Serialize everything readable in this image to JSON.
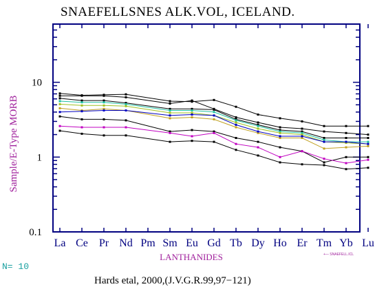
{
  "chart_data": {
    "type": "line",
    "title": "SNAEFELLSNES ALK.VOL, ICELAND.",
    "ylabel": "Sample/E-Type MORB",
    "xlabel": "LANTHANIDES",
    "yscale": "log",
    "ylim": [
      0.1,
      60
    ],
    "yticks": [
      {
        "value": 0.1,
        "label": "0.1"
      },
      {
        "value": 1,
        "label": "1"
      },
      {
        "value": 10,
        "label": "10"
      }
    ],
    "categories": [
      "La",
      "Ce",
      "Pr",
      "Nd",
      "Pm",
      "Sm",
      "Eu",
      "Gd",
      "Tb",
      "Dy",
      "Ho",
      "Er",
      "Tm",
      "Yb",
      "Lu"
    ],
    "legend_label": "+— SNAEFELL.ICL",
    "n_label": "N= 10",
    "citation": "Hards etal, 2000,(J.V.G.R.99,97−121)",
    "series": [
      {
        "color": "#000000",
        "values": [
          7.1,
          6.7,
          6.8,
          6.9,
          null,
          5.6,
          5.5,
          5.8,
          4.7,
          3.7,
          3.3,
          3.0,
          2.6,
          2.6,
          2.6
        ]
      },
      {
        "color": "#000000",
        "values": [
          6.6,
          6.6,
          6.6,
          6.3,
          null,
          5.2,
          5.7,
          4.4,
          3.4,
          2.9,
          2.5,
          2.4,
          2.2,
          2.1,
          2.0
        ]
      },
      {
        "color": "#000000",
        "values": [
          6.1,
          5.7,
          5.7,
          5.3,
          null,
          4.4,
          4.4,
          4.3,
          3.2,
          2.7,
          2.3,
          2.2,
          1.8,
          1.8,
          1.8
        ]
      },
      {
        "color": "#20c0a0",
        "values": [
          5.6,
          5.4,
          5.4,
          5.1,
          null,
          4.2,
          4.2,
          4.0,
          3.1,
          2.6,
          2.2,
          2.1,
          1.7,
          1.6,
          1.6
        ]
      },
      {
        "color": "#a0c020",
        "values": [
          5.1,
          4.9,
          4.9,
          4.8,
          null,
          3.9,
          3.9,
          3.6,
          2.9,
          2.4,
          2.1,
          2.0,
          1.6,
          1.55,
          1.5
        ]
      },
      {
        "color": "#c0a020",
        "values": [
          4.5,
          4.2,
          4.4,
          4.2,
          null,
          3.3,
          3.4,
          3.2,
          2.5,
          2.1,
          1.8,
          1.8,
          1.3,
          1.35,
          1.4
        ]
      },
      {
        "color": "#0000c0",
        "values": [
          4.0,
          4.1,
          4.2,
          4.2,
          null,
          3.6,
          3.7,
          3.6,
          2.7,
          2.2,
          1.9,
          1.9,
          1.6,
          1.6,
          1.5
        ]
      },
      {
        "color": "#000000",
        "values": [
          3.5,
          3.2,
          3.2,
          3.1,
          null,
          2.2,
          2.3,
          2.2,
          1.8,
          1.6,
          1.35,
          1.2,
          0.85,
          1.0,
          1.0
        ]
      },
      {
        "color": "#c000c0",
        "values": [
          2.6,
          2.5,
          2.5,
          2.5,
          null,
          2.1,
          1.9,
          2.1,
          1.5,
          1.35,
          1.0,
          1.2,
          0.95,
          0.83,
          0.92
        ]
      },
      {
        "color": "#000000",
        "values": [
          2.25,
          2.05,
          1.95,
          1.95,
          null,
          1.6,
          1.65,
          1.6,
          1.25,
          1.05,
          0.85,
          0.8,
          0.78,
          0.69,
          0.72
        ]
      }
    ]
  }
}
